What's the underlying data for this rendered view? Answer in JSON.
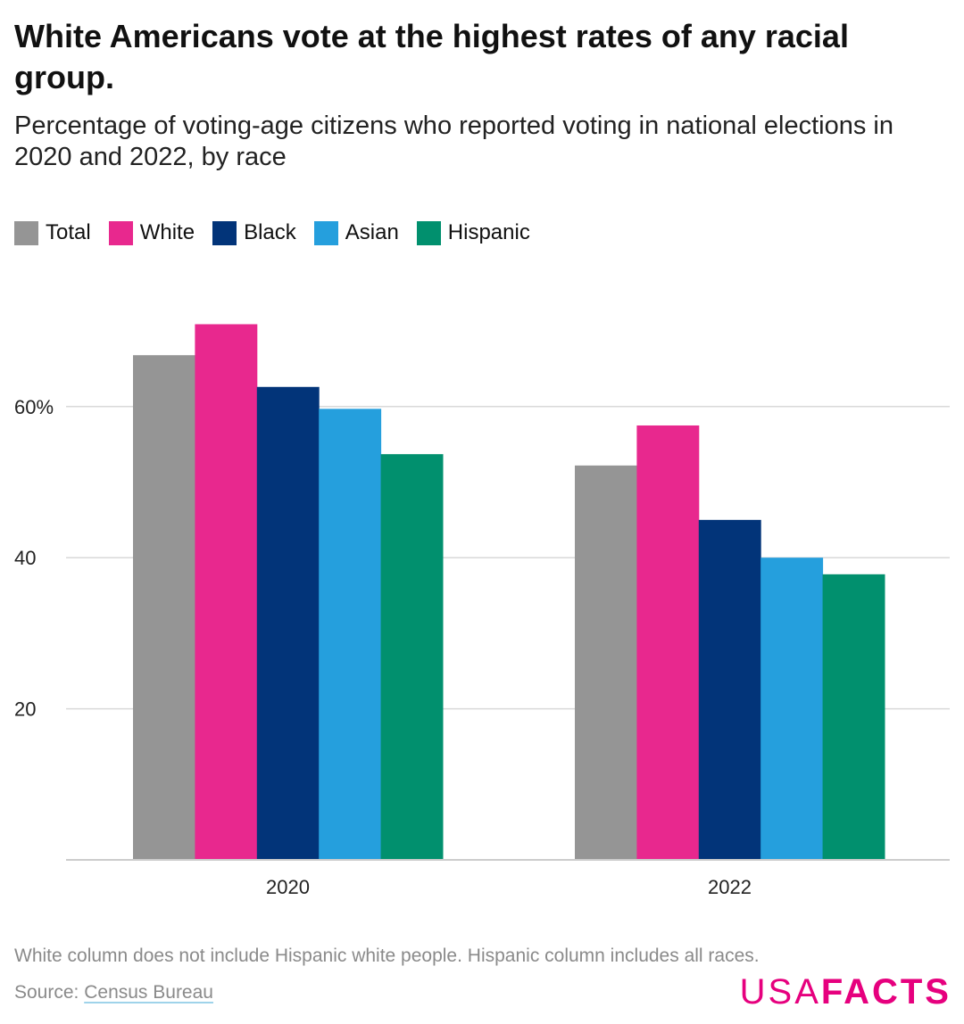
{
  "chart_data": {
    "type": "bar",
    "title": "White Americans vote at the highest rates of any racial group.",
    "subtitle": "Percentage of voting-age citizens who reported voting in national elections in 2020 and 2022, by race",
    "categories": [
      "2020",
      "2022"
    ],
    "series": [
      {
        "name": "Total",
        "color": "#959595",
        "values": [
          66.8,
          52.2
        ]
      },
      {
        "name": "White",
        "color": "#e8288e",
        "values": [
          70.9,
          57.5
        ]
      },
      {
        "name": "Black",
        "color": "#023479",
        "values": [
          62.6,
          45.0
        ]
      },
      {
        "name": "Asian",
        "color": "#259fdd",
        "values": [
          59.7,
          40.0
        ]
      },
      {
        "name": "Hispanic",
        "color": "#01906e",
        "values": [
          53.7,
          37.8
        ]
      }
    ],
    "yticks": [
      {
        "value": 20,
        "label": "20"
      },
      {
        "value": 40,
        "label": "40"
      },
      {
        "value": 60,
        "label": "60%"
      }
    ],
    "ylim": [
      0,
      75
    ],
    "grid": true,
    "legend": "top-left",
    "xlabel": "",
    "ylabel": ""
  },
  "footer": {
    "note": "White column does not include Hispanic white people. Hispanic column includes all races.",
    "source_prefix": "Source: ",
    "source_link": "Census Bureau",
    "brand_usa": "USA",
    "brand_facts": "FACTS"
  }
}
